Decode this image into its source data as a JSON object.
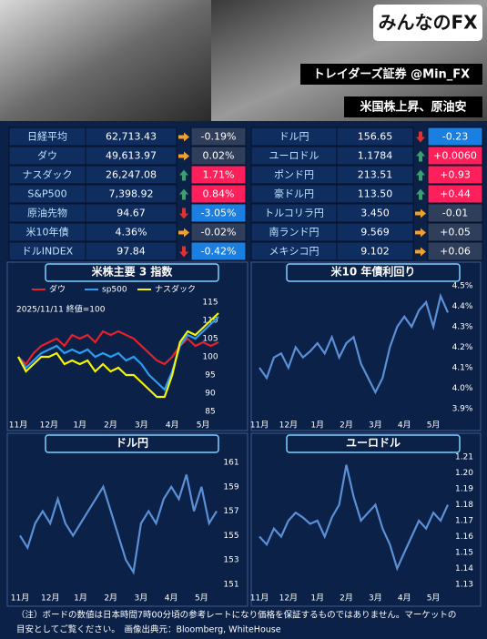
{
  "header": {
    "logo": "みんなのFX",
    "account": "トレイダーズ証券 @Min_FX",
    "headline": "米国株上昇、原油安"
  },
  "table": {
    "rows": [
      {
        "left": {
          "name": "日経平均",
          "value": "62,713.43",
          "change": "-0.19%",
          "trend": "flat"
        },
        "right": {
          "name": "ドル円",
          "value": "156.65",
          "change": "-0.23",
          "trend": "down"
        }
      },
      {
        "left": {
          "name": "ダウ",
          "value": "49,613.97",
          "change": "0.02%",
          "trend": "flat"
        },
        "right": {
          "name": "ユーロドル",
          "value": "1.1784",
          "change": "+0.0060",
          "trend": "up"
        }
      },
      {
        "left": {
          "name": "ナスダック",
          "value": "26,247.08",
          "change": "1.71%",
          "trend": "up"
        },
        "right": {
          "name": "ポンド円",
          "value": "213.51",
          "change": "+0.93",
          "trend": "up"
        }
      },
      {
        "left": {
          "name": "S&P500",
          "value": "7,398.92",
          "change": "0.84%",
          "trend": "up"
        },
        "right": {
          "name": "豪ドル円",
          "value": "113.50",
          "change": "+0.44",
          "trend": "up"
        }
      },
      {
        "left": {
          "name": "原油先物",
          "value": "94.67",
          "change": "-3.05%",
          "trend": "down"
        },
        "right": {
          "name": "トルコリラ円",
          "value": "3.450",
          "change": "-0.01",
          "trend": "flat"
        }
      },
      {
        "left": {
          "name": "米10年債",
          "value": "4.36%",
          "change": "-0.02%",
          "trend": "flat"
        },
        "right": {
          "name": "南ランド円",
          "value": "9.569",
          "change": "+0.05",
          "trend": "flat"
        }
      },
      {
        "left": {
          "name": "ドルINDEX",
          "value": "97.84",
          "change": "-0.42%",
          "trend": "down"
        },
        "right": {
          "name": "メキシコ円",
          "value": "9.102",
          "change": "+0.06",
          "trend": "flat"
        }
      }
    ]
  },
  "chart_data": [
    {
      "type": "line",
      "title": "米株主要 3 指数",
      "annotation": "2025/11/11 終値=100",
      "categories": [
        "11月",
        null,
        null,
        null,
        "12月",
        null,
        null,
        null,
        "1月",
        null,
        null,
        null,
        "2月",
        null,
        null,
        null,
        "3月",
        null,
        null,
        null,
        "4月",
        null,
        null,
        null,
        "5月",
        null,
        null
      ],
      "series": [
        {
          "name": "ダウ",
          "color": "#e8202a",
          "values": [
            100,
            98,
            101,
            103,
            104,
            105,
            103,
            106,
            105,
            106,
            104,
            107,
            106,
            107,
            106,
            105,
            103,
            101,
            99,
            98,
            100,
            103,
            105,
            103,
            104,
            103,
            104
          ]
        },
        {
          "name": "sp500",
          "color": "#2a9df4",
          "values": [
            100,
            97,
            99,
            101,
            102,
            103,
            101,
            102,
            101,
            102,
            100,
            101,
            100,
            101,
            99,
            100,
            98,
            95,
            93,
            91,
            96,
            103,
            106,
            105,
            107,
            109,
            111
          ]
        },
        {
          "name": "ナスダック",
          "color": "#f5f500",
          "values": [
            100,
            96,
            98,
            100,
            100,
            101,
            98,
            99,
            98,
            99,
            96,
            98,
            96,
            97,
            95,
            95,
            93,
            91,
            89,
            89,
            95,
            104,
            107,
            106,
            108,
            110,
            112
          ]
        }
      ],
      "ylim": [
        85,
        115
      ],
      "yticks": [
        85,
        90,
        95,
        100,
        105,
        110,
        115
      ]
    },
    {
      "type": "line",
      "title": "米10 年債利回り",
      "categories": [
        "11月",
        null,
        null,
        null,
        "12月",
        null,
        null,
        null,
        "1月",
        null,
        null,
        null,
        "2月",
        null,
        null,
        null,
        "3月",
        null,
        null,
        null,
        "4月",
        null,
        null,
        null,
        "5月",
        null,
        null
      ],
      "series": [
        {
          "color": "#5b8fd6",
          "values": [
            4.1,
            4.05,
            4.15,
            4.17,
            4.1,
            4.2,
            4.15,
            4.18,
            4.22,
            4.17,
            4.25,
            4.15,
            4.22,
            4.25,
            4.12,
            4.05,
            3.98,
            4.05,
            4.2,
            4.3,
            4.35,
            4.3,
            4.38,
            4.42,
            4.3,
            4.45,
            4.37
          ]
        }
      ],
      "ylim": [
        3.9,
        4.5
      ],
      "yticks": [
        {
          "value": 3.9,
          "label": "3.9%"
        },
        {
          "value": 4.0,
          "label": "4.0%"
        },
        {
          "value": 4.1,
          "label": "4.1%"
        },
        {
          "value": 4.2,
          "label": "4.2%"
        },
        {
          "value": 4.3,
          "label": "4.3%"
        },
        {
          "value": 4.4,
          "label": "4.4%"
        },
        {
          "value": 4.5,
          "label": "4.5%"
        }
      ]
    },
    {
      "type": "line",
      "title": "ドル円",
      "categories": [
        "11月",
        null,
        null,
        null,
        "12月",
        null,
        null,
        null,
        "1月",
        null,
        null,
        null,
        "2月",
        null,
        null,
        null,
        "3月",
        null,
        null,
        null,
        "4月",
        null,
        null,
        null,
        "5月",
        null,
        null
      ],
      "series": [
        {
          "color": "#5b8fd6",
          "values": [
            155,
            154,
            156,
            157,
            156,
            158,
            156,
            155,
            156,
            157,
            158,
            159,
            157,
            155,
            153,
            152,
            156,
            157,
            156,
            158,
            159,
            158,
            160,
            157,
            159,
            156,
            157
          ]
        }
      ],
      "ylim": [
        151,
        161
      ],
      "yticks": [
        151,
        153,
        155,
        157,
        159,
        161
      ]
    },
    {
      "type": "line",
      "title": "ユーロドル",
      "categories": [
        "11月",
        null,
        null,
        null,
        "12月",
        null,
        null,
        null,
        "1月",
        null,
        null,
        null,
        "2月",
        null,
        null,
        null,
        "3月",
        null,
        null,
        null,
        "4月",
        null,
        null,
        null,
        "5月",
        null,
        null
      ],
      "series": [
        {
          "color": "#5b8fd6",
          "values": [
            1.16,
            1.155,
            1.165,
            1.16,
            1.17,
            1.175,
            1.172,
            1.168,
            1.17,
            1.16,
            1.172,
            1.18,
            1.205,
            1.185,
            1.17,
            1.175,
            1.18,
            1.165,
            1.155,
            1.14,
            1.15,
            1.16,
            1.17,
            1.165,
            1.175,
            1.17,
            1.18
          ]
        }
      ],
      "ylim": [
        1.13,
        1.21
      ],
      "yticks": [
        1.13,
        1.14,
        1.15,
        1.16,
        1.17,
        1.18,
        1.19,
        {
          "value": 1.2,
          "label": "1.20"
        },
        1.21
      ]
    }
  ],
  "footer": {
    "lines": [
      "（注）ボードの数値は日本時間7時00分頃の参考レートになり価格を保証するものではありません。マーケットの",
      "目安としてご覧ください。　画像出典元：Bloomberg, WhiteHouse"
    ]
  }
}
